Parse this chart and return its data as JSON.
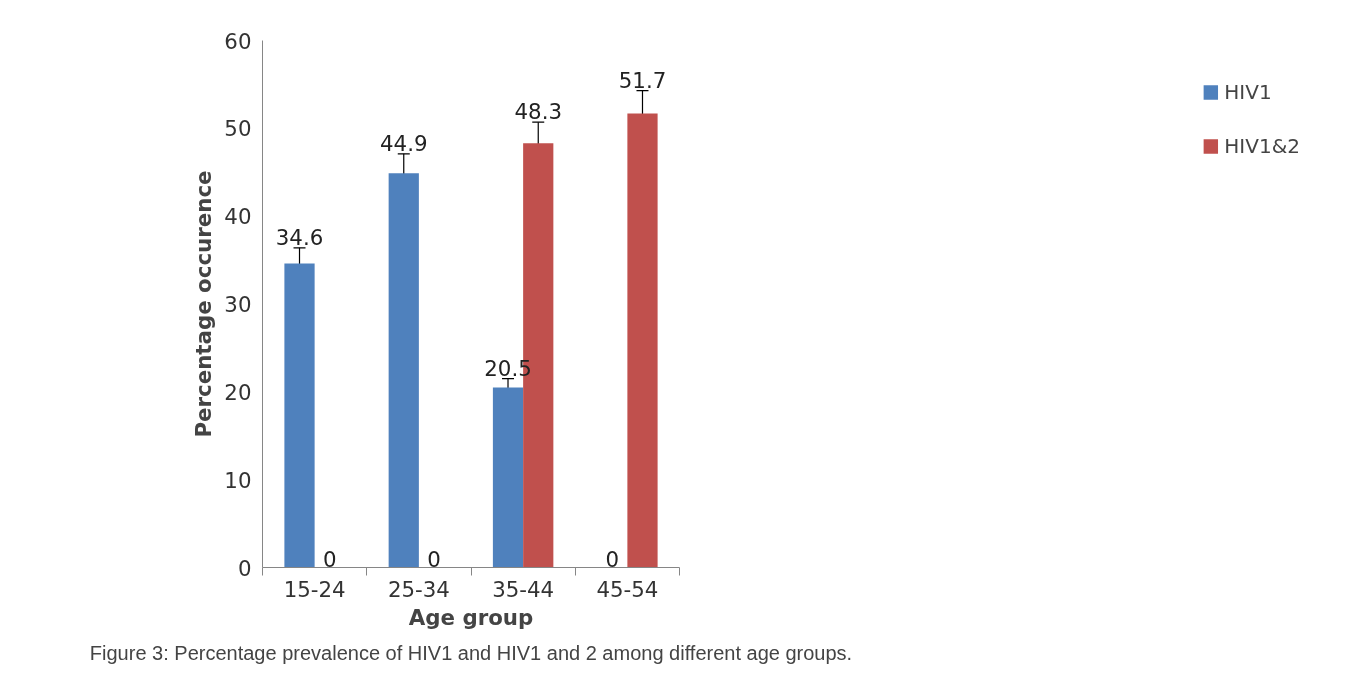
{
  "chart_data": {
    "type": "bar",
    "xlabel": "Age group",
    "ylabel": "Percentage occurence",
    "categories": [
      "15-24",
      "25-34",
      "35-44",
      "45-54"
    ],
    "series": [
      {
        "name": "HIV1",
        "color": "#4f81bd",
        "values": [
          34.6,
          44.9,
          20.5,
          0
        ],
        "errors": [
          1.8,
          2.2,
          1.0,
          null
        ]
      },
      {
        "name": "HIV1&2",
        "color": "#c0504d",
        "values": [
          0,
          0,
          48.3,
          51.7
        ],
        "errors": [
          null,
          null,
          2.4,
          2.6
        ]
      }
    ],
    "ylim": [
      0,
      60
    ],
    "yticks": [
      0,
      10,
      20,
      30,
      40,
      50,
      60
    ],
    "grid": false,
    "legend": "right",
    "data_labels": true,
    "annotations": [
      "Figure 3: Percentage prevalence of HIV1 and HIV1 and 2 among different age groups."
    ]
  }
}
